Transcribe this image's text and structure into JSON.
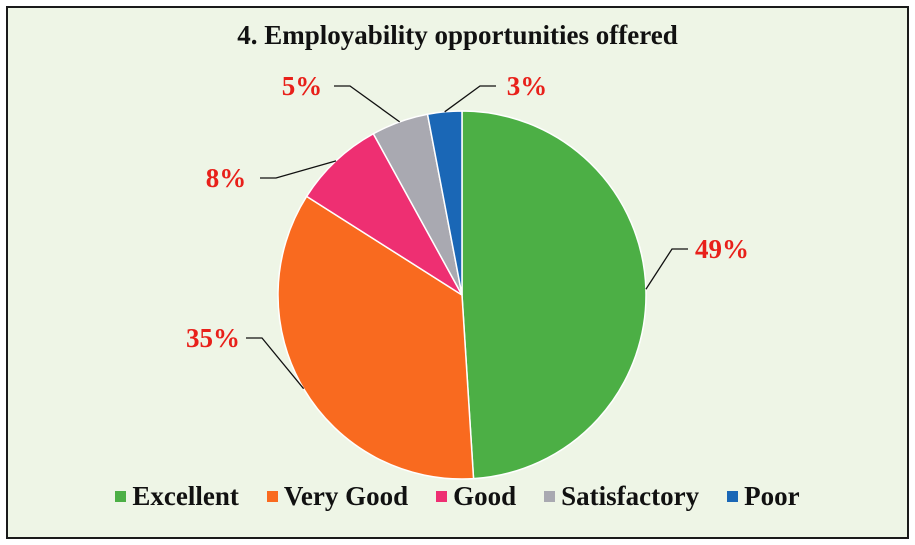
{
  "chart_data": {
    "type": "pie",
    "title": "4. Employability opportunities offered",
    "categories": [
      "Excellent",
      "Very Good",
      "Good",
      "Satisfactory",
      "Poor"
    ],
    "values": [
      49,
      35,
      8,
      5,
      3
    ],
    "data_labels": [
      "49%",
      "35%",
      "8%",
      "5%",
      "3%"
    ],
    "colors": [
      "#4caf45",
      "#f96a1f",
      "#ee2f72",
      "#a9a9b1",
      "#1a67b6"
    ],
    "label_color": "#e8201a",
    "legend_position": "bottom",
    "start_angle": "12 o'clock, clockwise"
  }
}
